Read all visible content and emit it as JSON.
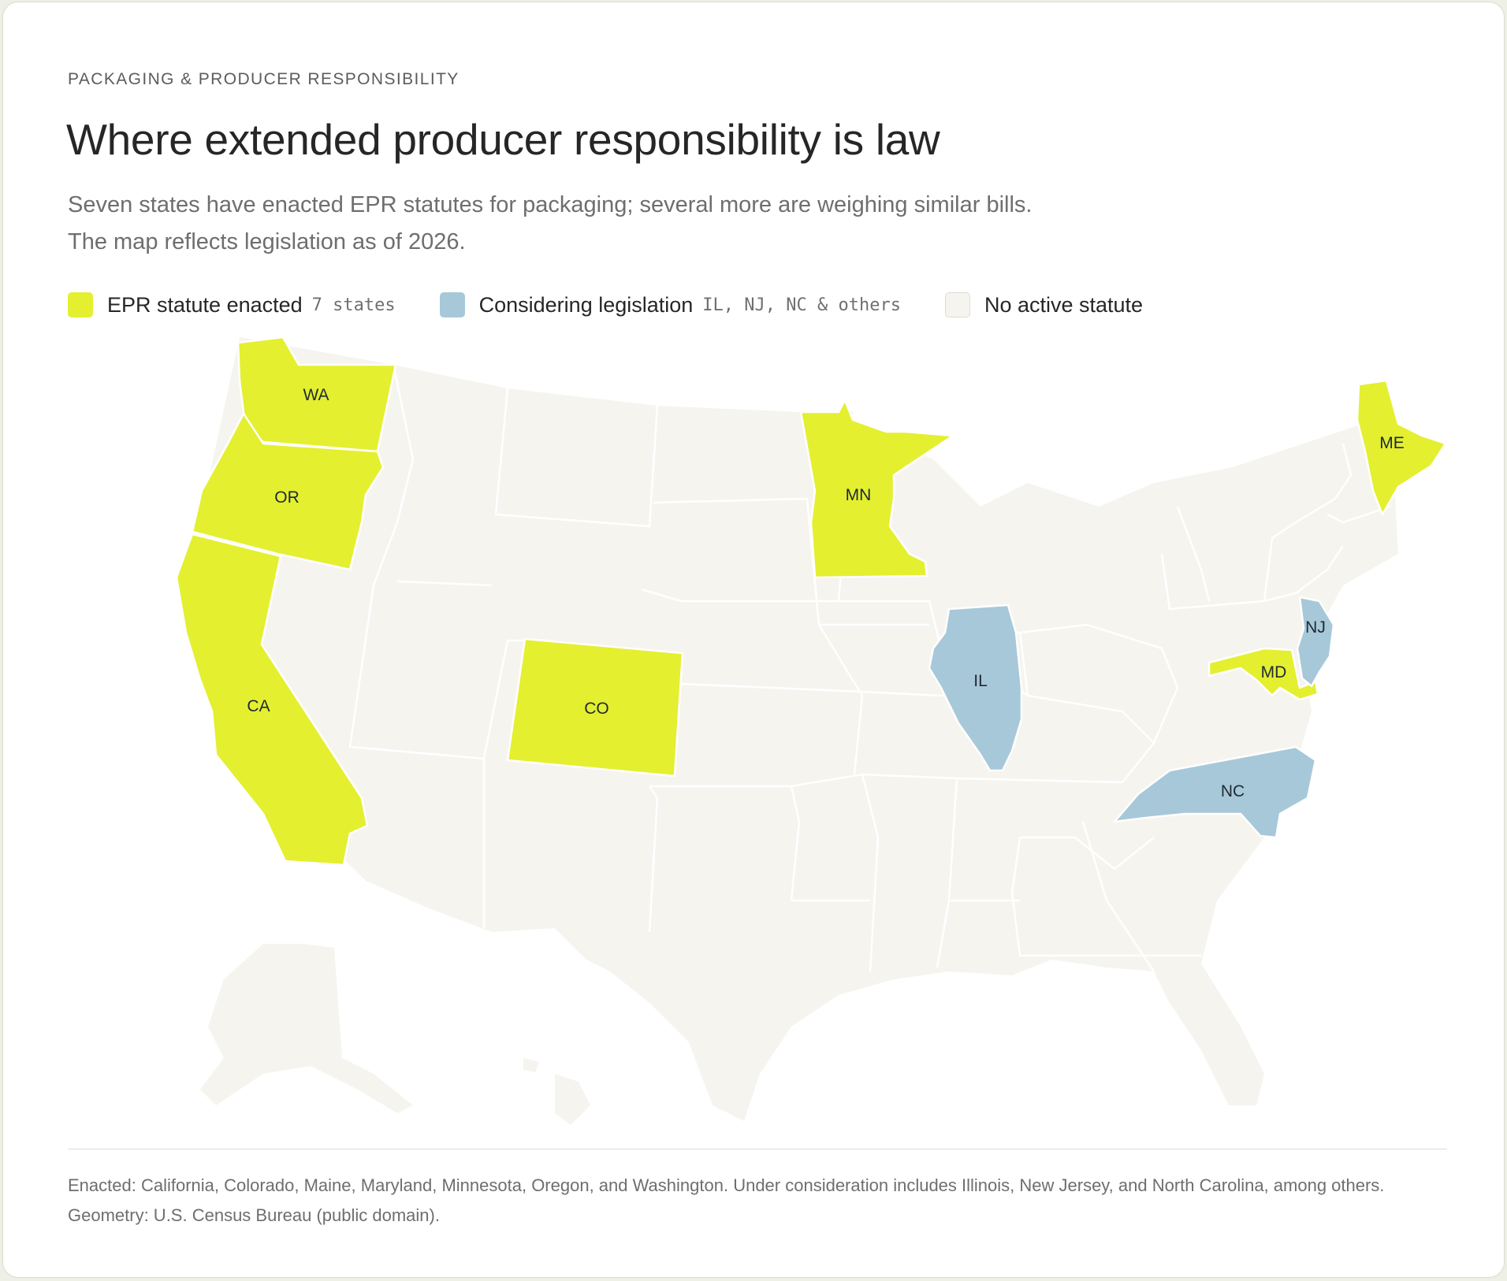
{
  "header": {
    "kicker": "PACKAGING & PRODUCER RESPONSIBILITY",
    "title": "Where extended producer responsibility is law",
    "subtitle": "Seven states have enacted EPR statutes for packaging; several more are weighing similar bills. The map reflects legislation as of 2026."
  },
  "legend": {
    "enacted": {
      "label": "EPR statute enacted",
      "note": "7 states",
      "color": "#e4ef30"
    },
    "considering": {
      "label": "Considering legislation",
      "note": "IL, NJ, NC & others",
      "color": "#a7c8d9"
    },
    "none": {
      "label": "No active statute",
      "color": "#f5f4ef"
    }
  },
  "map": {
    "enacted_states": [
      {
        "abbr": "WA",
        "name": "Washington"
      },
      {
        "abbr": "OR",
        "name": "Oregon"
      },
      {
        "abbr": "CA",
        "name": "California"
      },
      {
        "abbr": "CO",
        "name": "Colorado"
      },
      {
        "abbr": "MN",
        "name": "Minnesota"
      },
      {
        "abbr": "MD",
        "name": "Maryland"
      },
      {
        "abbr": "ME",
        "name": "Maine"
      }
    ],
    "considering_states": [
      {
        "abbr": "IL",
        "name": "Illinois"
      },
      {
        "abbr": "NJ",
        "name": "New Jersey"
      },
      {
        "abbr": "NC",
        "name": "North Carolina"
      }
    ]
  },
  "footnote": "Enacted: California, Colorado, Maine, Maryland, Minnesota, Oregon, and Washington. Under consideration includes Illinois, New Jersey, and North Carolina, among others. Geometry: U.S. Census Bureau (public domain)."
}
